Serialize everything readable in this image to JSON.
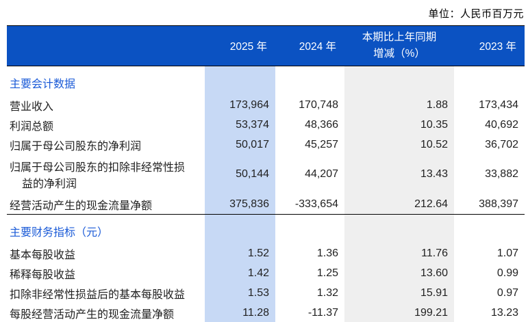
{
  "unit_note": "单位：人民币百万元",
  "colors": {
    "header_blue": "#0B52C2",
    "col_2025_bg": "#C7D9F5",
    "col_change_bg": "#EFEFEF",
    "section_blue": "#1A5AD7",
    "text": "#1F1F1F"
  },
  "table": {
    "header": {
      "col_2025": "2025 年",
      "col_2024": "2024 年",
      "col_change_line1": "本期比上年同期",
      "col_change_line2": "增减（%）",
      "col_2023": "2023 年"
    },
    "sections": [
      {
        "title": "主要会计数据",
        "rows": [
          {
            "label": "营业收入",
            "v2025": "173,964",
            "v2024": "170,748",
            "change": "1.88",
            "v2023": "173,434"
          },
          {
            "label": "利润总额",
            "v2025": "53,374",
            "v2024": "48,366",
            "change": "10.35",
            "v2023": "40,692"
          },
          {
            "label": "归属于母公司股东的净利润",
            "v2025": "50,017",
            "v2024": "45,257",
            "change": "10.52",
            "v2023": "36,702"
          },
          {
            "label_line1": "归属于母公司股东的扣除非经常性损",
            "label_line2": "益的净利润",
            "v2025": "50,144",
            "v2024": "44,207",
            "change": "13.43",
            "v2023": "33,882"
          },
          {
            "label": "经营活动产生的现金流量净额",
            "v2025": "375,836",
            "v2024": "-333,654",
            "change": "212.64",
            "v2023": "388,397"
          }
        ]
      },
      {
        "title": "主要财务指标（元）",
        "rows": [
          {
            "label": "基本每股收益",
            "v2025": "1.52",
            "v2024": "1.36",
            "change": "11.76",
            "v2023": "1.07"
          },
          {
            "label": "稀释每股收益",
            "v2025": "1.42",
            "v2024": "1.25",
            "change": "13.60",
            "v2023": "0.99"
          },
          {
            "label": "扣除非经常性损益后的基本每股收益",
            "v2025": "1.53",
            "v2024": "1.32",
            "change": "15.91",
            "v2023": "0.97"
          },
          {
            "label": "每股经营活动产生的现金流量净额",
            "v2025": "11.28",
            "v2024": "-11.37",
            "change": "199.21",
            "v2023": "13.23"
          }
        ]
      }
    ]
  }
}
